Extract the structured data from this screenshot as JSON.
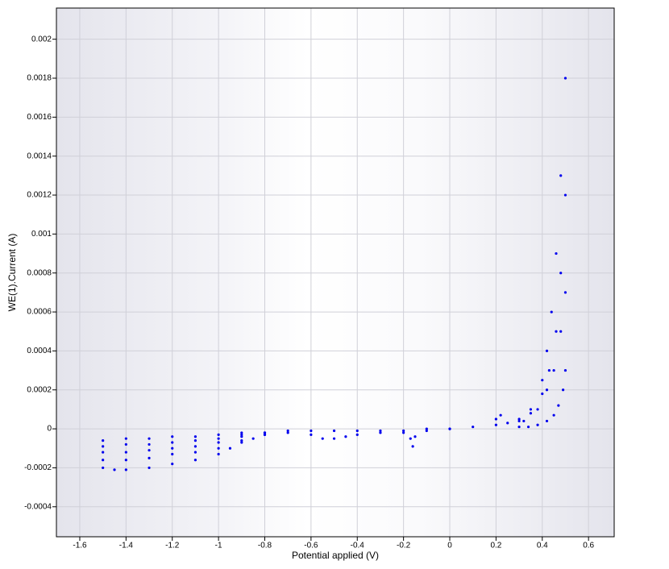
{
  "chart_data": {
    "type": "scatter",
    "x_label": "Potential applied (V)",
    "y_label": "WE(1).Current (A)",
    "color": "#0000ee",
    "grid": true,
    "xlim": [
      -1.701,
      0.711
    ],
    "ylim": [
      -0.000554,
      0.00216
    ],
    "xticks": [
      -1.6,
      -1.4,
      -1.2,
      -1,
      -0.8,
      -0.6,
      -0.4,
      -0.2,
      0,
      0.2,
      0.4,
      0.6
    ],
    "yticks": [
      -0.0004,
      -0.0002,
      0,
      0.0002,
      0.0004,
      0.0006,
      0.0008,
      0.001,
      0.0012,
      0.0014,
      0.0016,
      0.0018,
      0.002
    ],
    "x": [
      -1.5,
      -1.4,
      -1.3,
      -1.2,
      -1.1,
      -1.0,
      -0.9,
      -0.8,
      -0.7,
      -0.6,
      -0.5,
      -0.4,
      -0.3,
      -0.2,
      -0.1,
      0,
      0.1,
      0.2,
      -1.5,
      -1.45,
      -1.4,
      -1.3,
      -1.2,
      -1.1,
      -1.0,
      -0.95,
      -0.9,
      -0.85,
      -0.8,
      -0.7,
      -0.6,
      -0.55,
      -0.5,
      -0.45,
      -0.4,
      -0.3,
      -0.2,
      -0.17,
      -0.16,
      -0.15,
      -0.1,
      0,
      -1.5,
      -1.4,
      -1.3,
      -1.2,
      -1.1,
      -1.0,
      -0.9,
      -0.8,
      -1.5,
      -1.4,
      -1.3,
      -1.2,
      -1.1,
      -1.0,
      -0.9,
      -0.8,
      -1.5,
      -1.4,
      -1.3,
      -1.2,
      -1.1,
      -1.0,
      -0.9,
      -0.8,
      0.3,
      0.35,
      0.4,
      0.42,
      0.44,
      0.46,
      0.48,
      0.5,
      0.3,
      0.35,
      0.4,
      0.43,
      0.46,
      0.48,
      0.5,
      0.32,
      0.38,
      0.42,
      0.45,
      0.48,
      0.5,
      0.5,
      0.49,
      0.47,
      0.45,
      0.42,
      0.38,
      0.34,
      0.3,
      0.25,
      0.22,
      0.2
    ],
    "values": [
      -6e-05,
      -5e-05,
      -5e-05,
      -4e-05,
      -4e-05,
      -3e-05,
      -2e-05,
      -2e-05,
      -1e-05,
      -1e-05,
      -1e-05,
      -1e-05,
      -1e-05,
      -1e-05,
      0,
      0,
      1e-05,
      2e-05,
      -0.0002,
      -0.00021,
      -0.00021,
      -0.0002,
      -0.00018,
      -0.00016,
      -0.00013,
      -0.0001,
      -7e-05,
      -5e-05,
      -3e-05,
      -2e-05,
      -3e-05,
      -5e-05,
      -5e-05,
      -4e-05,
      -3e-05,
      -2e-05,
      -2e-05,
      -5e-05,
      -9e-05,
      -4e-05,
      -1e-05,
      0,
      -0.00016,
      -0.00016,
      -0.00015,
      -0.00013,
      -0.00012,
      -0.0001,
      -6e-05,
      -3e-05,
      -0.00012,
      -0.00012,
      -0.00011,
      -0.0001,
      -9e-05,
      -7e-05,
      -4e-05,
      -2e-05,
      -9e-05,
      -8e-05,
      -8e-05,
      -7e-05,
      -6e-05,
      -5e-05,
      -3e-05,
      -2e-05,
      5e-05,
      0.0001,
      0.00025,
      0.0004,
      0.0006,
      0.0009,
      0.0013,
      0.0018,
      4e-05,
      8e-05,
      0.00018,
      0.0003,
      0.0005,
      0.0008,
      0.0012,
      4e-05,
      0.0001,
      0.0002,
      0.0003,
      0.0005,
      0.0007,
      0.0003,
      0.0002,
      0.00012,
      7e-05,
      4e-05,
      2e-05,
      1e-05,
      1e-05,
      3e-05,
      7e-05,
      5e-05
    ]
  }
}
